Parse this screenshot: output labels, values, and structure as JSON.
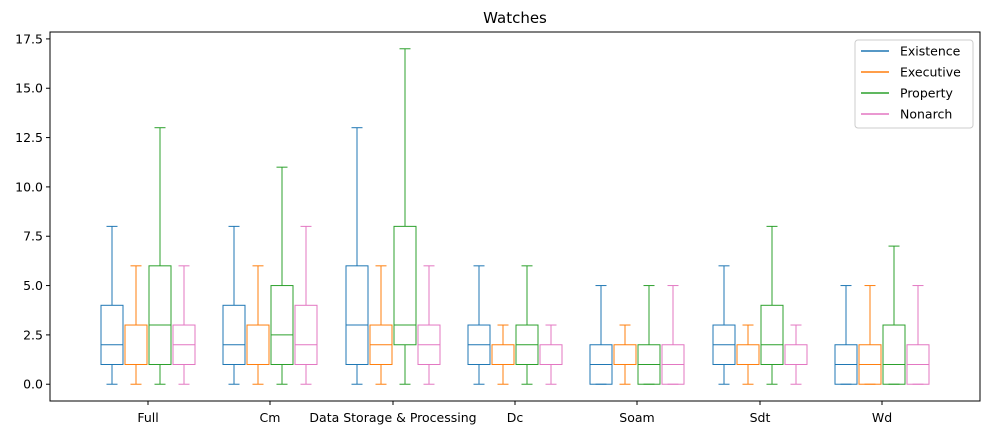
{
  "chart_data": {
    "type": "box",
    "title": "Watches",
    "xlabel": "",
    "ylabel": "",
    "ylim": [
      -0.85,
      17.85
    ],
    "yticks": [
      "0.0",
      "2.5",
      "5.0",
      "7.5",
      "10.0",
      "12.5",
      "15.0",
      "17.5"
    ],
    "categories": [
      "Full",
      "Cm",
      "Data Storage & Processing",
      "Dc",
      "Soam",
      "Sdt",
      "Wd"
    ],
    "legend_position": "top-right",
    "grid": false,
    "series": [
      {
        "name": "Existence",
        "color": "#1f77b4",
        "boxes": [
          {
            "min": 0,
            "q1": 1,
            "median": 2,
            "q3": 4,
            "max": 8
          },
          {
            "min": 0,
            "q1": 1,
            "median": 2,
            "q3": 4,
            "max": 8
          },
          {
            "min": 0,
            "q1": 1,
            "median": 3,
            "q3": 6,
            "max": 13
          },
          {
            "min": 0,
            "q1": 1,
            "median": 2,
            "q3": 3,
            "max": 6
          },
          {
            "min": 0,
            "q1": 0,
            "median": 1,
            "q3": 2,
            "max": 5
          },
          {
            "min": 0,
            "q1": 1,
            "median": 2,
            "q3": 3,
            "max": 6
          },
          {
            "min": 0,
            "q1": 0,
            "median": 1,
            "q3": 2,
            "max": 5
          }
        ]
      },
      {
        "name": "Executive",
        "color": "#ff7f0e",
        "boxes": [
          {
            "min": 0,
            "q1": 1,
            "median": 1,
            "q3": 3,
            "max": 6
          },
          {
            "min": 0,
            "q1": 1,
            "median": 1,
            "q3": 3,
            "max": 6
          },
          {
            "min": 0,
            "q1": 1,
            "median": 2,
            "q3": 3,
            "max": 6
          },
          {
            "min": 0,
            "q1": 1,
            "median": 1,
            "q3": 2,
            "max": 3
          },
          {
            "min": 0,
            "q1": 1,
            "median": 1,
            "q3": 2,
            "max": 3
          },
          {
            "min": 0,
            "q1": 1,
            "median": 1,
            "q3": 2,
            "max": 3
          },
          {
            "min": 0,
            "q1": 0,
            "median": 1,
            "q3": 2,
            "max": 5
          }
        ]
      },
      {
        "name": "Property",
        "color": "#2ca02c",
        "boxes": [
          {
            "min": 0,
            "q1": 1,
            "median": 3,
            "q3": 6,
            "max": 13
          },
          {
            "min": 0,
            "q1": 1,
            "median": 2.5,
            "q3": 5,
            "max": 11
          },
          {
            "min": 0,
            "q1": 2,
            "median": 3,
            "q3": 8,
            "max": 17
          },
          {
            "min": 0,
            "q1": 1,
            "median": 2,
            "q3": 3,
            "max": 6
          },
          {
            "min": 0,
            "q1": 0,
            "median": 1,
            "q3": 2,
            "max": 5
          },
          {
            "min": 0,
            "q1": 1,
            "median": 2,
            "q3": 4,
            "max": 8
          },
          {
            "min": 0,
            "q1": 0,
            "median": 1,
            "q3": 3,
            "max": 7
          }
        ]
      },
      {
        "name": "Nonarch",
        "color": "#e377c2",
        "boxes": [
          {
            "min": 0,
            "q1": 1,
            "median": 2,
            "q3": 3,
            "max": 6
          },
          {
            "min": 0,
            "q1": 1,
            "median": 2,
            "q3": 4,
            "max": 8
          },
          {
            "min": 0,
            "q1": 1,
            "median": 2,
            "q3": 3,
            "max": 6
          },
          {
            "min": 0,
            "q1": 1,
            "median": 1,
            "q3": 2,
            "max": 3
          },
          {
            "min": 0,
            "q1": 0,
            "median": 1,
            "q3": 2,
            "max": 5
          },
          {
            "min": 0,
            "q1": 1,
            "median": 1,
            "q3": 2,
            "max": 3
          },
          {
            "min": 0,
            "q1": 0,
            "median": 1,
            "q3": 2,
            "max": 5
          }
        ]
      }
    ]
  }
}
